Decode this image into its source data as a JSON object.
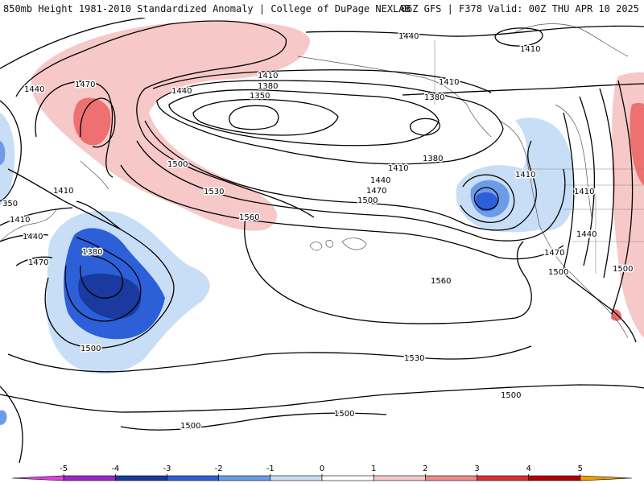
{
  "header": {
    "left": "850mb Height 1981-2010 Standardized Anomaly | College of DuPage NEXLAB",
    "right": "06Z GFS | F378 Valid: 00Z THU APR 10 2025"
  },
  "contour_labels": {
    "l1440a": "1440",
    "l1410a": "1410",
    "l1440b": "1440",
    "l1470a": "1470",
    "l1440c": "1440",
    "l1410b": "1410",
    "l1380a": "1380",
    "l1350": "1350",
    "l1410c": "1410",
    "l1380b": "1380",
    "l1380c": "1380",
    "l1500a": "1500",
    "l1530a": "1530",
    "l1560a": "1560",
    "l1410d": "1410",
    "l1440d": "1440",
    "l1470b": "1470",
    "l1500b": "1500",
    "l1410e": "1410",
    "l1410f": "1410",
    "l1410g": "1410",
    "l1380d": "1380",
    "l1350b": "350",
    "l1410h": "1410",
    "l1440e": "1440",
    "l1470c": "1470",
    "l1500c": "1500",
    "l1560b": "1560",
    "l1530b": "1530",
    "l1440f": "1440",
    "l1470d": "1470",
    "l1500d": "1500",
    "l1500e": "1500",
    "l1500f": "1500",
    "l1500g": "1500",
    "l1500h": "1500"
  },
  "colorbar": {
    "ticks": [
      "-5",
      "-4",
      "-3",
      "-2",
      "-1",
      "0",
      "1",
      "2",
      "3",
      "4",
      "5"
    ],
    "colors": [
      "#e040e0",
      "#9a28c8",
      "#1a3aa0",
      "#2d5fd8",
      "#6c9be8",
      "#c8def6",
      "#ffffff",
      "#f6c8c8",
      "#ee8a8a",
      "#d83030",
      "#b00000",
      "#f0a000"
    ]
  },
  "colors": {
    "neg1": "#c8def6",
    "neg2": "#6c9be8",
    "neg3": "#2d5fd8",
    "neg4": "#1a3aa0",
    "pos1": "#f6c8c8",
    "pos2": "#ee7070"
  }
}
